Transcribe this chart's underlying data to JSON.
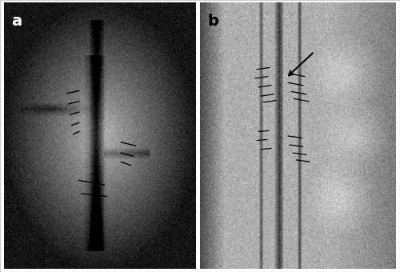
{
  "figure_width": 5.0,
  "figure_height": 3.4,
  "dpi": 100,
  "background_color": "#ffffff",
  "border_color": "#000000",
  "label_a": "a",
  "label_b": "b",
  "label_fontsize": 14,
  "label_color": "#ffffff",
  "label_b_color": "#000000",
  "panel_a": {
    "bg_color_center": "#b0b0b0",
    "bg_color_edge": "#1a1a1a",
    "circle": true
  },
  "panel_b": {
    "bg_color": "#a0a0a0"
  }
}
